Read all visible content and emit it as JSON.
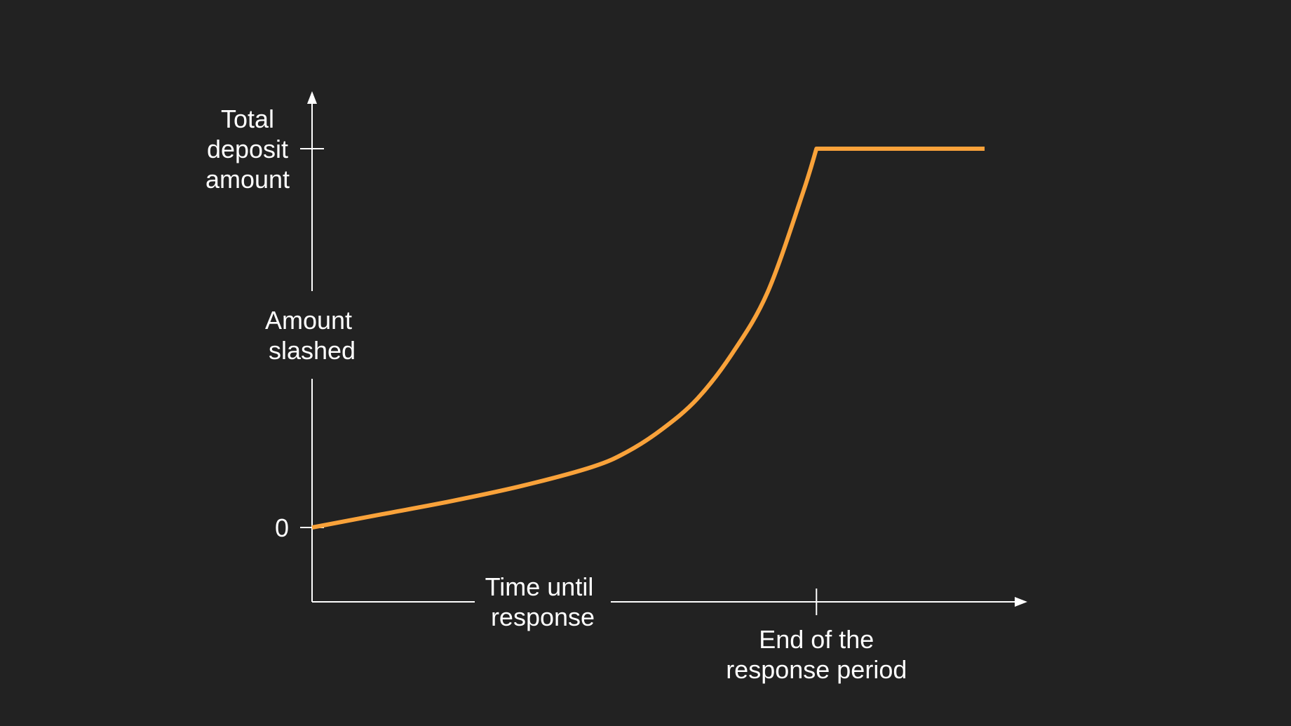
{
  "chart_data": {
    "type": "line",
    "title": "",
    "xlabel": "Time until response",
    "ylabel": "Amount slashed",
    "x_ticks": [
      {
        "value": 0.72,
        "label": "End of the response period"
      }
    ],
    "y_ticks": [
      {
        "value": 0,
        "label": "0"
      },
      {
        "value": 1,
        "label": "Total deposit amount"
      }
    ],
    "xlim": [
      0,
      1
    ],
    "ylim": [
      -0.2,
      1.15
    ],
    "grid": false,
    "legend": "none",
    "series": [
      {
        "color": "#F9A23A",
        "x": [
          0,
          0.1,
          0.2,
          0.3,
          0.4,
          0.45,
          0.5,
          0.55,
          0.6,
          0.65,
          0.7,
          0.72,
          0.8,
          0.9,
          0.96
        ],
        "y": [
          0,
          0.035,
          0.07,
          0.11,
          0.16,
          0.2,
          0.26,
          0.34,
          0.46,
          0.62,
          0.88,
          1,
          1,
          1,
          1
        ]
      }
    ]
  },
  "colors": {
    "background": "#222222",
    "axis": "#FFFFFF",
    "text": "#FFFFFF",
    "curve": "#F9A23A"
  }
}
